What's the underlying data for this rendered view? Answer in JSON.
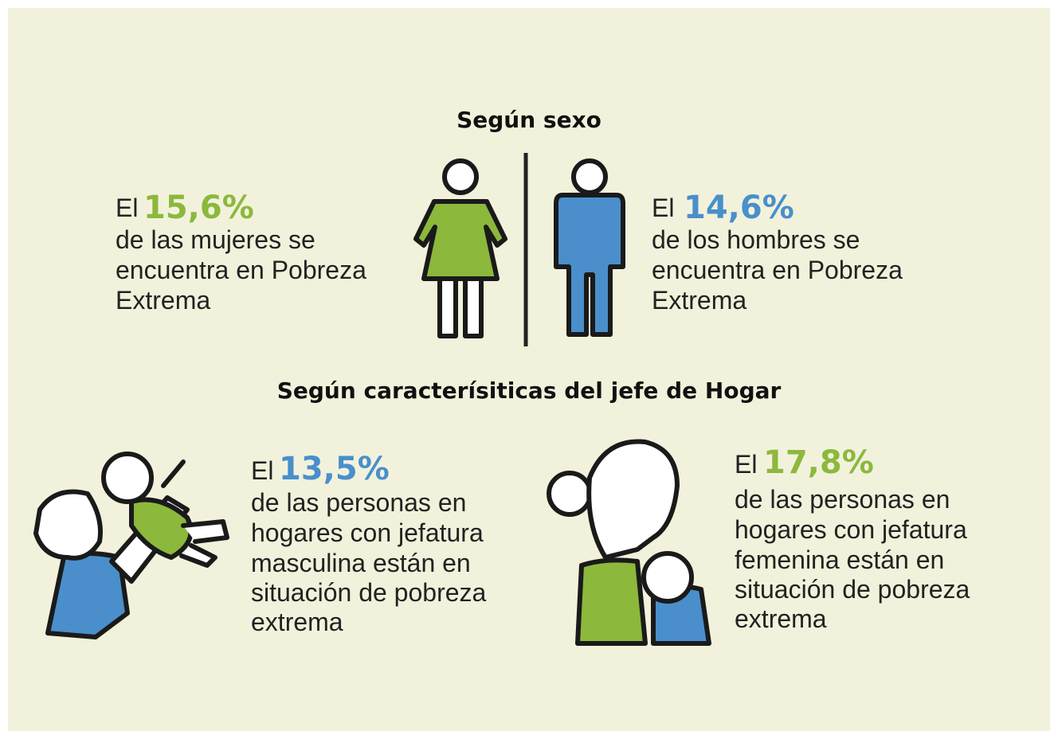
{
  "sections": [
    {
      "heading": "Según sexo",
      "items": [
        {
          "prefix": "El",
          "value": "15,6%",
          "lines": [
            "de las mujeres se",
            "encuentra en Pobreza",
            "Extrema"
          ]
        },
        {
          "prefix": "El",
          "value": "14,6%",
          "lines": [
            "de los hombres se",
            "encuentra en Pobreza",
            "Extrema"
          ]
        }
      ]
    },
    {
      "heading": "Según caracterísiticas del jefe de Hogar",
      "items": [
        {
          "prefix": "El",
          "value": "13,5%",
          "lines": [
            "de las personas en",
            "hogares con jefatura",
            "masculina están en",
            "situación de pobreza",
            "extrema"
          ]
        },
        {
          "prefix": "El",
          "value": "17,8%",
          "lines": [
            "de las personas en",
            "hogares con jefatura",
            "femenina están en",
            "situación de pobreza",
            "extrema"
          ]
        }
      ]
    }
  ]
}
